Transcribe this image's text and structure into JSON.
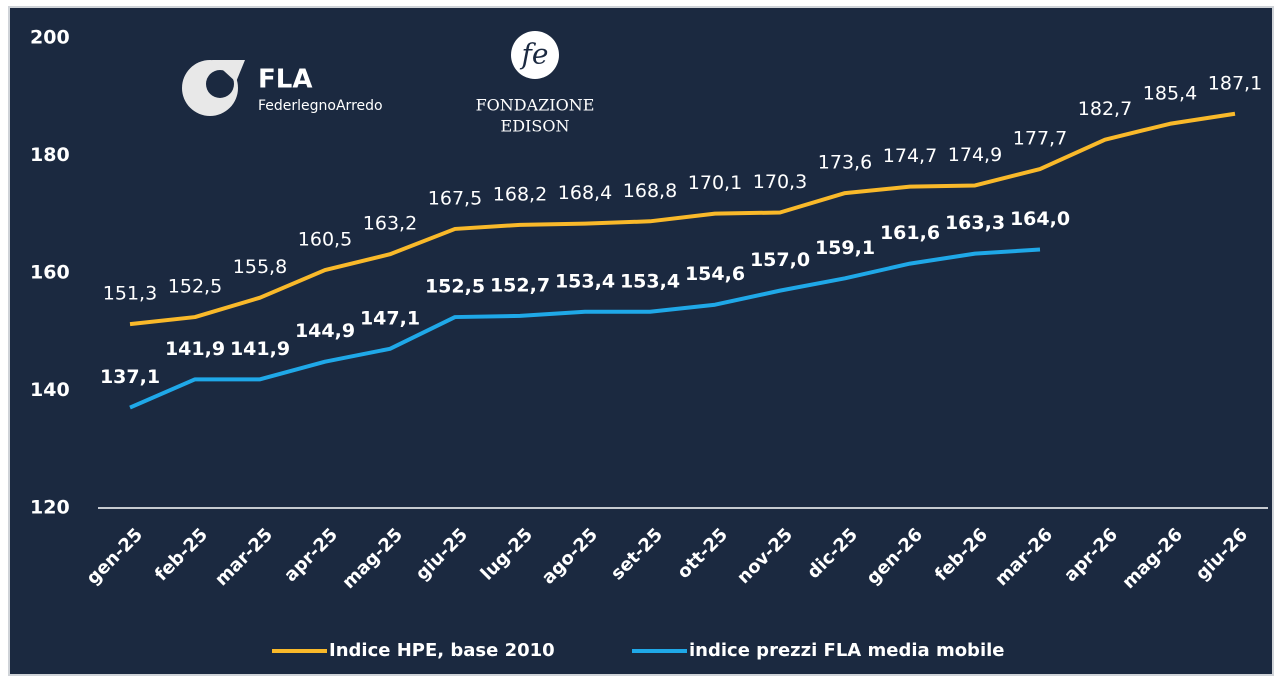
{
  "chart_data": {
    "type": "line",
    "annotations": [
      "FLA",
      "FederlegnoArredo",
      "FONDAZIONE",
      "EDISON"
    ],
    "categories": [
      "gen-25",
      "feb-25",
      "mar-25",
      "apr-25",
      "mag-25",
      "giu-25",
      "lug-25",
      "ago-25",
      "set-25",
      "ott-25",
      "nov-25",
      "dic-25",
      "gen-26",
      "feb-26",
      "mar-26",
      "apr-26",
      "mag-26",
      "giu-26"
    ],
    "series": [
      {
        "name": "Indice HPE, base 2010",
        "color": "#f9b92a",
        "values": [
          151.3,
          152.5,
          155.8,
          160.5,
          163.2,
          167.5,
          168.2,
          168.4,
          168.8,
          170.1,
          170.3,
          173.6,
          174.7,
          174.9,
          177.7,
          182.7,
          185.4,
          187.1
        ],
        "value_labels": [
          "151,3",
          "152,5",
          "155,8",
          "160,5",
          "163,2",
          "167,5",
          "168,2",
          "168,4",
          "168,8",
          "170,1",
          "170,3",
          "173,6",
          "174,7",
          "174,9",
          "177,7",
          "182,7",
          "185,4",
          "187,1"
        ]
      },
      {
        "name": "indice prezzi FLA media mobile",
        "color": "#1fa8e8",
        "values": [
          137.1,
          141.9,
          141.9,
          144.9,
          147.1,
          152.5,
          152.7,
          153.4,
          153.4,
          154.6,
          157.0,
          159.1,
          161.6,
          163.3,
          164.0,
          null,
          null,
          null
        ],
        "value_labels": [
          "137,1",
          "141,9",
          "141,9",
          "144,9",
          "147,1",
          "152,5",
          "152,7",
          "153,4",
          "153,4",
          "154,6",
          "157,0",
          "159,1",
          "161,6",
          "163,3",
          "164,0",
          null,
          null,
          null
        ]
      }
    ],
    "ylim": [
      120,
      200
    ],
    "yticks": [
      120,
      140,
      160,
      180,
      200
    ],
    "grid": false,
    "legend": "bottom"
  }
}
